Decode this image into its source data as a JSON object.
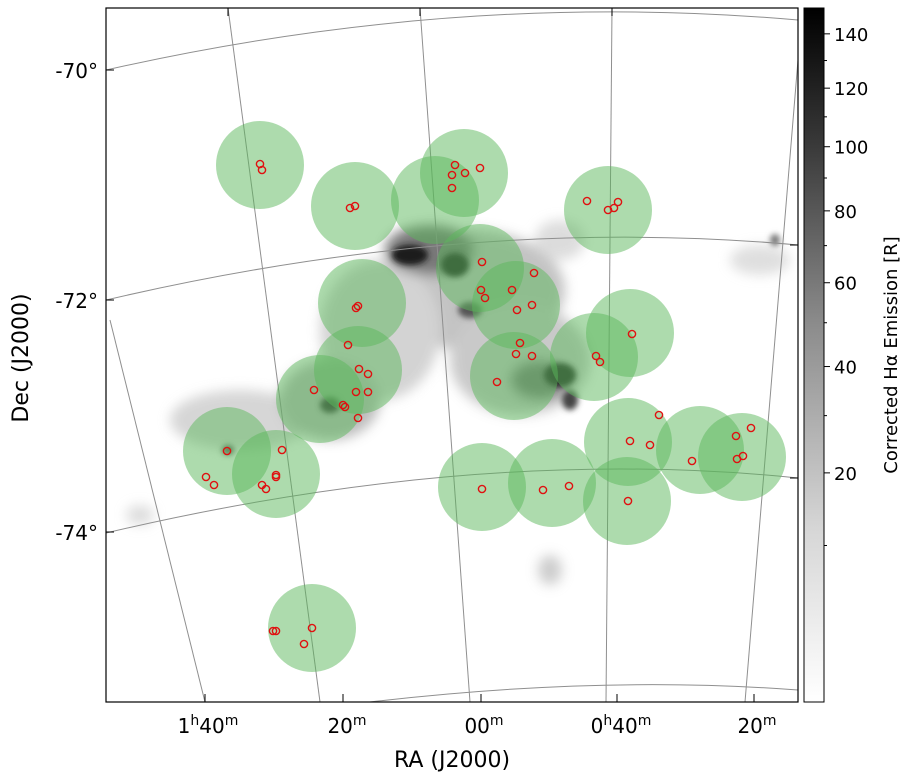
{
  "chart_data": {
    "type": "scatter",
    "xlabel": "RA (J2000)",
    "ylabel": "Dec (J2000)",
    "colorbar": {
      "label": "Corrected Hα Emission [R]",
      "ticks": [
        140,
        120,
        100,
        80,
        60,
        40,
        20
      ],
      "range": [
        0,
        150
      ],
      "cmap": "gray_r",
      "scale": "nonlinear"
    },
    "ra_ticks": [
      {
        "h": "1",
        "m": "40",
        "label": "1h40m"
      },
      {
        "h": "",
        "m": "20",
        "label": "20m"
      },
      {
        "h": "",
        "m": "00",
        "label": "00m"
      },
      {
        "h": "0",
        "m": "40",
        "label": "0h40m"
      },
      {
        "h": "",
        "m": "20",
        "label": "20m"
      }
    ],
    "dec_ticks": [
      "-70°",
      "-72°",
      "-74°"
    ],
    "fields": [
      {
        "ra": "1h33m",
        "dec": -70.8
      },
      {
        "ra": "1h18m",
        "dec": -71.2
      },
      {
        "ra": "1h09m",
        "dec": -71.2
      },
      {
        "ra": "1h04m",
        "dec": -70.9
      },
      {
        "ra": "0h42m",
        "dec": -71.2
      },
      {
        "ra": "1h17m",
        "dec": -72.0
      },
      {
        "ra": "1h00m",
        "dec": -71.8
      },
      {
        "ra": "0h54m",
        "dec": -72.0
      },
      {
        "ra": "0h44m",
        "dec": -72.3
      },
      {
        "ra": "0h48m",
        "dec": -72.5
      },
      {
        "ra": "1h15m",
        "dec": -72.5
      },
      {
        "ra": "0h59m",
        "dec": -72.6
      },
      {
        "ra": "1h21m",
        "dec": -72.9
      },
      {
        "ra": "1h40m",
        "dec": -73.3
      },
      {
        "ra": "1h34m",
        "dec": -73.5
      },
      {
        "ra": "0h40m",
        "dec": -73.2
      },
      {
        "ra": "0h28m",
        "dec": -73.3
      },
      {
        "ra": "0h20m",
        "dec": -73.3
      },
      {
        "ra": "1h00m",
        "dec": -73.6
      },
      {
        "ra": "0h50m",
        "dec": -73.6
      },
      {
        "ra": "0h40m",
        "dec": -73.7
      },
      {
        "ra": "1h27m",
        "dec": -74.8
      }
    ],
    "markers_color": "#e01010",
    "fields_color": "#5cb85c"
  }
}
